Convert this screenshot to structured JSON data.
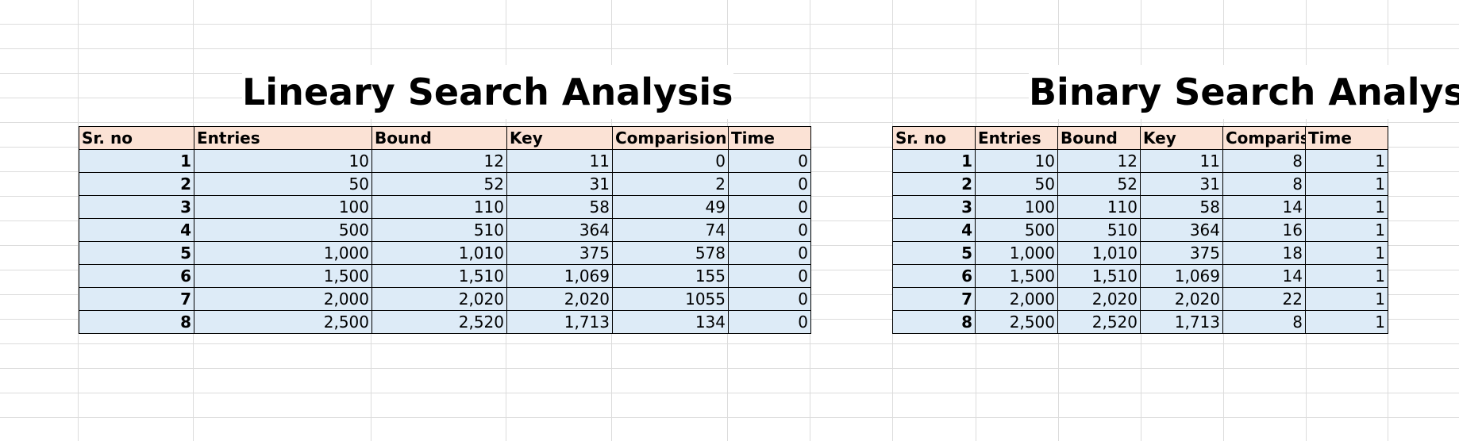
{
  "linear": {
    "title": "Lineary Search Analysis",
    "headers": [
      "Sr. no",
      "Entries",
      "Bound",
      "Key",
      "Comparision",
      "Time"
    ],
    "rows": [
      [
        "1",
        "10",
        "12",
        "11",
        "0",
        "0"
      ],
      [
        "2",
        "50",
        "52",
        "31",
        "2",
        "0"
      ],
      [
        "3",
        "100",
        "110",
        "58",
        "49",
        "0"
      ],
      [
        "4",
        "500",
        "510",
        "364",
        "74",
        "0"
      ],
      [
        "5",
        "1,000",
        "1,010",
        "375",
        "578",
        "0"
      ],
      [
        "6",
        "1,500",
        "1,510",
        "1,069",
        "155",
        "0"
      ],
      [
        "7",
        "2,000",
        "2,020",
        "2,020",
        "1055",
        "0"
      ],
      [
        "8",
        "2,500",
        "2,520",
        "1,713",
        "134",
        "0"
      ]
    ]
  },
  "binary": {
    "title": "Binary Search Analysis",
    "headers": [
      "Sr. no",
      "Entries",
      "Bound",
      "Key",
      "Comparisi",
      "Time"
    ],
    "rows": [
      [
        "1",
        "10",
        "12",
        "11",
        "8",
        "1"
      ],
      [
        "2",
        "50",
        "52",
        "31",
        "8",
        "1"
      ],
      [
        "3",
        "100",
        "110",
        "58",
        "14",
        "1"
      ],
      [
        "4",
        "500",
        "510",
        "364",
        "16",
        "1"
      ],
      [
        "5",
        "1,000",
        "1,010",
        "375",
        "18",
        "1"
      ],
      [
        "6",
        "1,500",
        "1,510",
        "1,069",
        "14",
        "1"
      ],
      [
        "7",
        "2,000",
        "2,020",
        "2,020",
        "22",
        "1"
      ],
      [
        "8",
        "2,500",
        "2,520",
        "1,713",
        "8",
        "1"
      ]
    ]
  },
  "colors": {
    "header_fill": "#fbe2d5",
    "cell_fill": "#ddebf7",
    "gridline": "#dcdcdc",
    "border": "#000000"
  }
}
